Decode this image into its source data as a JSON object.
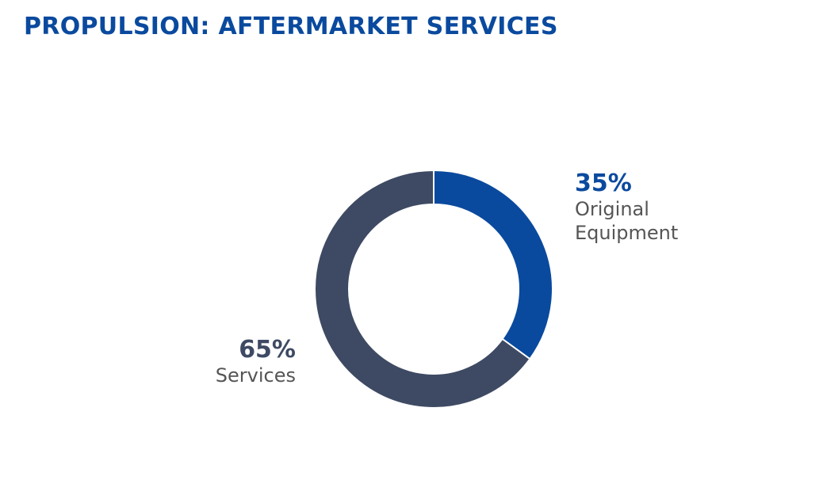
{
  "chart_data": {
    "type": "pie",
    "donut": true,
    "title": "PROPULSION: AFTERMARKET SERVICES",
    "categories": [
      "Original Equipment",
      "Services"
    ],
    "values": [
      35,
      65
    ],
    "value_labels": [
      "35%",
      "65%"
    ],
    "colors": [
      "#0a4a9e",
      "#3e4a63"
    ]
  }
}
